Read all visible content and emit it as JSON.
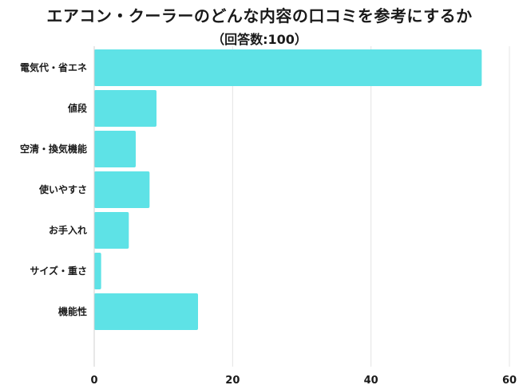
{
  "chart_data": {
    "type": "bar",
    "orientation": "horizontal",
    "title": "エアコン・クーラーのどんな内容の口コミを参考にするか",
    "subtitle": "（回答数:100）",
    "categories": [
      "電気代・省エネ",
      "値段",
      "空清・換気機能",
      "使いやすさ",
      "お手入れ",
      "サイズ・重さ",
      "機能性"
    ],
    "values": [
      56,
      9,
      6,
      8,
      5,
      1,
      15
    ],
    "xlim": [
      0,
      60
    ],
    "xticks": [
      0,
      20,
      40,
      60
    ],
    "grid": true,
    "bar_color": "#5ee2e6",
    "grid_color": "#e4e4e4"
  }
}
